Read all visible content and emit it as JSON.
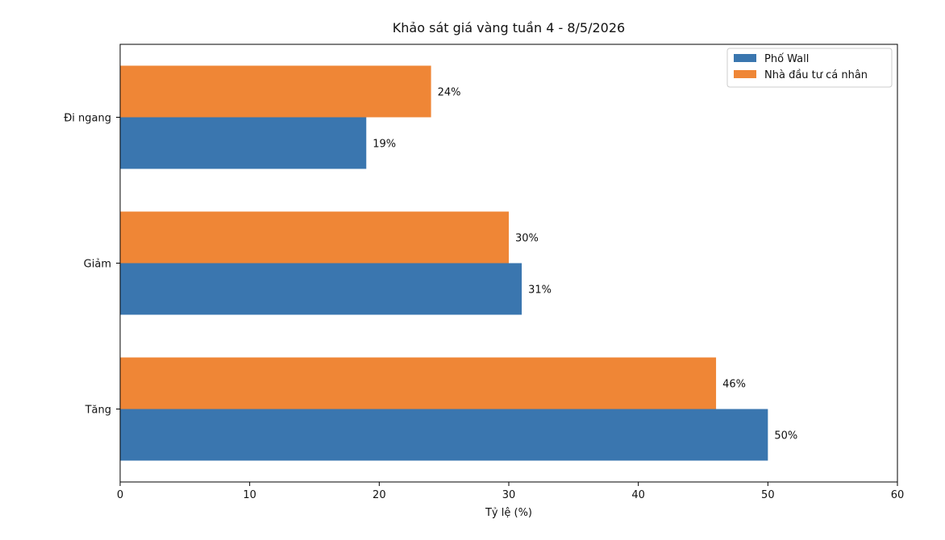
{
  "chart_data": {
    "type": "bar",
    "orientation": "horizontal",
    "title": "Khảo sát giá vàng tuần 4 - 8/5/2026",
    "xlabel": "Tỷ lệ (%)",
    "ylabel": "",
    "categories": [
      "Tăng",
      "Giảm",
      "Đi ngang"
    ],
    "xlim": [
      0,
      60
    ],
    "xticks": [
      0,
      10,
      20,
      30,
      40,
      50,
      60
    ],
    "series": [
      {
        "name": "Phố Wall",
        "color": "#3a76af",
        "values": [
          50,
          31,
          19
        ],
        "labels": [
          "50%",
          "31%",
          "19%"
        ]
      },
      {
        "name": "Nhà đầu tư cá nhân",
        "color": "#ef8636",
        "values": [
          46,
          30,
          24
        ],
        "labels": [
          "46%",
          "30%",
          "24%"
        ]
      }
    ],
    "legend": "top-right",
    "grid": false
  }
}
